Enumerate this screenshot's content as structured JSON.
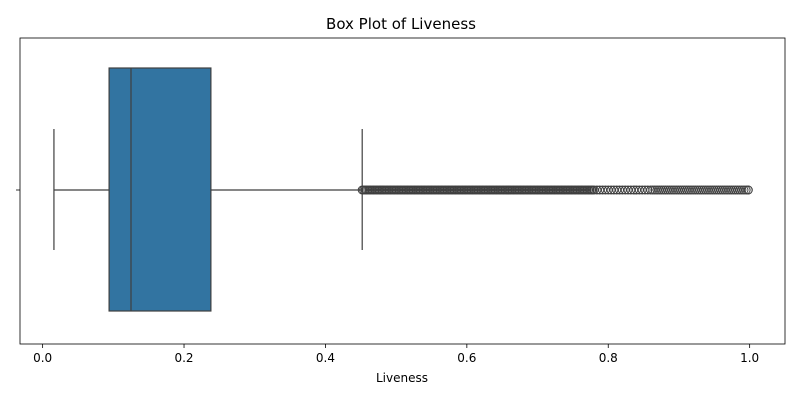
{
  "chart_data": {
    "type": "box",
    "title": "Box Plot of Liveness",
    "xlabel": "Liveness",
    "ylabel": "",
    "orientation": "horizontal",
    "xlim": [
      -0.032,
      1.05
    ],
    "xticks": [
      0.0,
      0.2,
      0.4,
      0.6,
      0.8,
      1.0
    ],
    "xtick_labels": [
      "0.0",
      "0.2",
      "0.4",
      "0.6",
      "0.8",
      "1.0"
    ],
    "grid": false,
    "box": {
      "whisker_low": 0.016,
      "q1": 0.094,
      "median": 0.125,
      "q3": 0.238,
      "whisker_high": 0.452
    },
    "outlier_range": [
      0.452,
      0.998
    ],
    "outliers_dense": true,
    "colors": {
      "box_fill": "#3274a1",
      "lines": "#3f3f3f",
      "outlier_marker": "#3f3f3f"
    }
  }
}
